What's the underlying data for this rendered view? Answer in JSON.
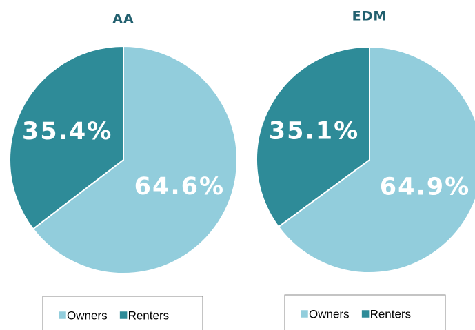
{
  "chart_data": [
    {
      "type": "pie",
      "title": "AA",
      "categories": [
        "Owners",
        "Renters"
      ],
      "values": [
        64.6,
        35.4
      ],
      "value_labels": [
        "64.6%",
        "35.4%"
      ],
      "colors": [
        "#92cddc",
        "#2e8b98"
      ],
      "legend": "bottom"
    },
    {
      "type": "pie",
      "title": "EDM",
      "categories": [
        "Owners",
        "Renters"
      ],
      "values": [
        64.9,
        35.1
      ],
      "value_labels": [
        "64.9%",
        "35.1%"
      ],
      "colors": [
        "#92cddc",
        "#2e8b98"
      ],
      "legend": "bottom"
    }
  ]
}
